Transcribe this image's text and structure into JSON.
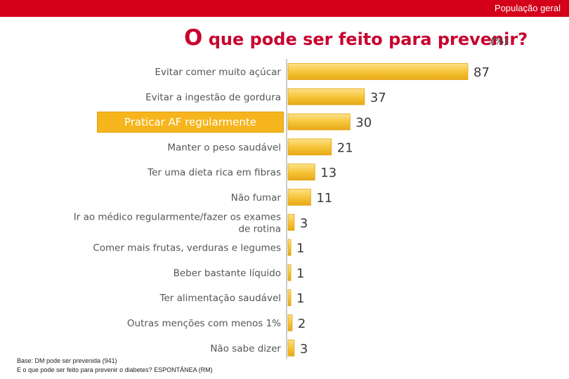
{
  "header": {
    "segment_label": "População geral"
  },
  "chart_data": {
    "type": "bar",
    "orientation": "horizontal",
    "title_first": "O",
    "title_rest": " que pode ser feito para prevenir?",
    "unit": "(%)",
    "categories": [
      "Evitar comer muito açúcar",
      "Evitar a ingestão de gordura",
      "Praticar AF regularmente",
      "Manter o peso saudável",
      "Ter uma dieta rica em fibras",
      "Não fumar",
      "Ir ao médico regularmente/fazer os exames de rotina",
      "Comer mais frutas, verduras e legumes",
      "Beber bastante líquido",
      "Ter alimentação saudável",
      "Outras menções com menos 1%",
      "Não sabe dizer"
    ],
    "category_lines": [
      [
        "Evitar comer muito açúcar"
      ],
      [
        "Evitar a ingestão de gordura"
      ],
      [
        "Praticar AF regularmente"
      ],
      [
        "Manter o peso saudável"
      ],
      [
        "Ter uma dieta rica em fibras"
      ],
      [
        "Não fumar"
      ],
      [
        "Ir ao médico regularmente/fazer os exames",
        "de rotina"
      ],
      [
        "Comer mais frutas, verduras e legumes"
      ],
      [
        "Beber bastante líquido"
      ],
      [
        "Ter alimentação saudável"
      ],
      [
        "Outras menções com menos 1%"
      ],
      [
        "Não sabe dizer"
      ]
    ],
    "values": [
      87,
      37,
      30,
      21,
      13,
      11,
      3,
      1,
      1,
      1,
      2,
      3
    ],
    "highlighted_category": "Praticar AF regularmente",
    "xlim": [
      0,
      100
    ],
    "bar_color": "#f5c233",
    "highlight_color": "#f6b51d",
    "grid": false
  },
  "footnote": {
    "line1": "Base: DM pode ser prevenida (941)",
    "line2": "E o que pode ser feito para prevenir o diabetes? ESPONTÂNEA (RM)"
  }
}
